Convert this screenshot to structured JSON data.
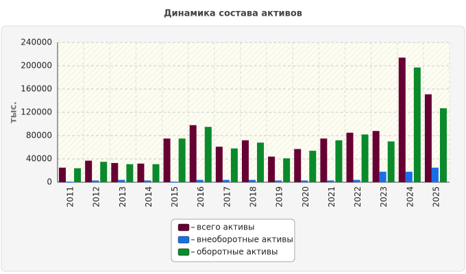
{
  "chart_data": {
    "type": "bar",
    "title": "Динамика состава активов",
    "y_label": "тыс.",
    "categories": [
      "2011",
      "2012",
      "2013",
      "2014",
      "2015",
      "2016",
      "2017",
      "2018",
      "2019",
      "2020",
      "2021",
      "2022",
      "2023",
      "2024",
      "2025"
    ],
    "series": [
      {
        "name": "всего активы",
        "color": "#660033",
        "values": [
          25000,
          37000,
          33000,
          32000,
          75000,
          98000,
          61000,
          72000,
          44000,
          57000,
          75000,
          85000,
          88000,
          214000,
          151000
        ]
      },
      {
        "name": "внеоборотные активы",
        "color": "#1a6fe8",
        "values": [
          1000,
          3000,
          4000,
          3000,
          1000,
          4000,
          4000,
          4000,
          3000,
          3000,
          3000,
          4000,
          18000,
          18000,
          25000
        ]
      },
      {
        "name": "оборотные активы",
        "color": "#0a8a2a",
        "values": [
          24000,
          35000,
          31000,
          31000,
          75000,
          95000,
          58000,
          68000,
          41000,
          54000,
          72000,
          82000,
          70000,
          197000,
          127000
        ]
      }
    ],
    "ylim": [
      0,
      240000
    ],
    "yticks": [
      0,
      40000,
      80000,
      120000,
      160000,
      200000,
      240000
    ],
    "grid": true
  }
}
